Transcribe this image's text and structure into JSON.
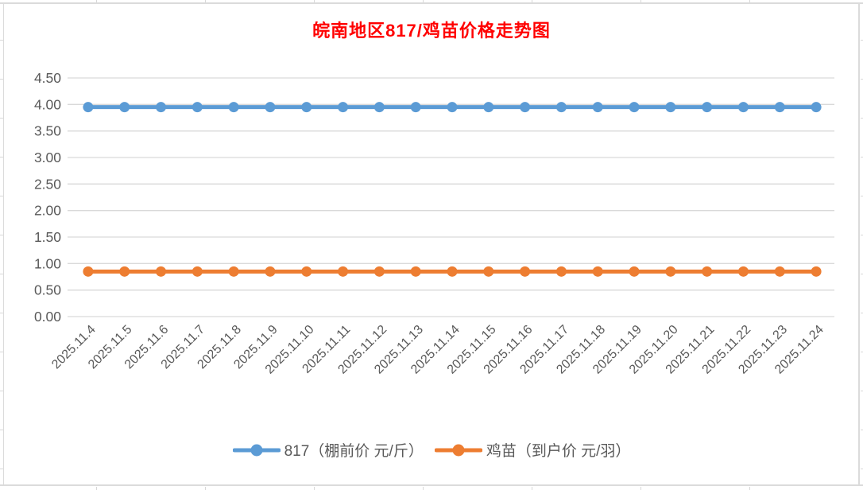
{
  "chart_data": {
    "type": "line",
    "title": "皖南地区817/鸡苗价格走势图",
    "title_color": "#FF0000",
    "axis_text_color": "#595959",
    "gridline_color": "#D9D9D9",
    "grid": true,
    "legend_position": "bottom",
    "xlabel": "",
    "ylabel": "",
    "ylim": [
      0,
      4.5
    ],
    "ytick_step": 0.5,
    "ytick_labels": [
      "4.50",
      "4.00",
      "3.50",
      "3.00",
      "2.50",
      "2.00",
      "1.50",
      "1.00",
      "0.50",
      "0.00"
    ],
    "categories": [
      "2025.11.4",
      "2025.11.5",
      "2025.11.6",
      "2025.11.7",
      "2025.11.8",
      "2025.11.9",
      "2025.11.10",
      "2025.11.11",
      "2025.11.12",
      "2025.11.13",
      "2025.11.14",
      "2025.11.15",
      "2025.11.16",
      "2025.11.17",
      "2025.11.18",
      "2025.11.19",
      "2025.11.20",
      "2025.11.21",
      "2025.11.22",
      "2025.11.23",
      "2025.11.24"
    ],
    "series": [
      {
        "name": "817（棚前价 元/斤）",
        "color": "#5B9BD5",
        "marker": "circle",
        "values": [
          3.95,
          3.95,
          3.95,
          3.95,
          3.95,
          3.95,
          3.95,
          3.95,
          3.95,
          3.95,
          3.95,
          3.95,
          3.95,
          3.95,
          3.95,
          3.95,
          3.95,
          3.95,
          3.95,
          3.95,
          3.95
        ]
      },
      {
        "name": "鸡苗（到户价 元/羽）",
        "color": "#ED7D31",
        "marker": "circle",
        "values": [
          0.85,
          0.85,
          0.85,
          0.85,
          0.85,
          0.85,
          0.85,
          0.85,
          0.85,
          0.85,
          0.85,
          0.85,
          0.85,
          0.85,
          0.85,
          0.85,
          0.85,
          0.85,
          0.85,
          0.85,
          0.85
        ]
      }
    ]
  }
}
